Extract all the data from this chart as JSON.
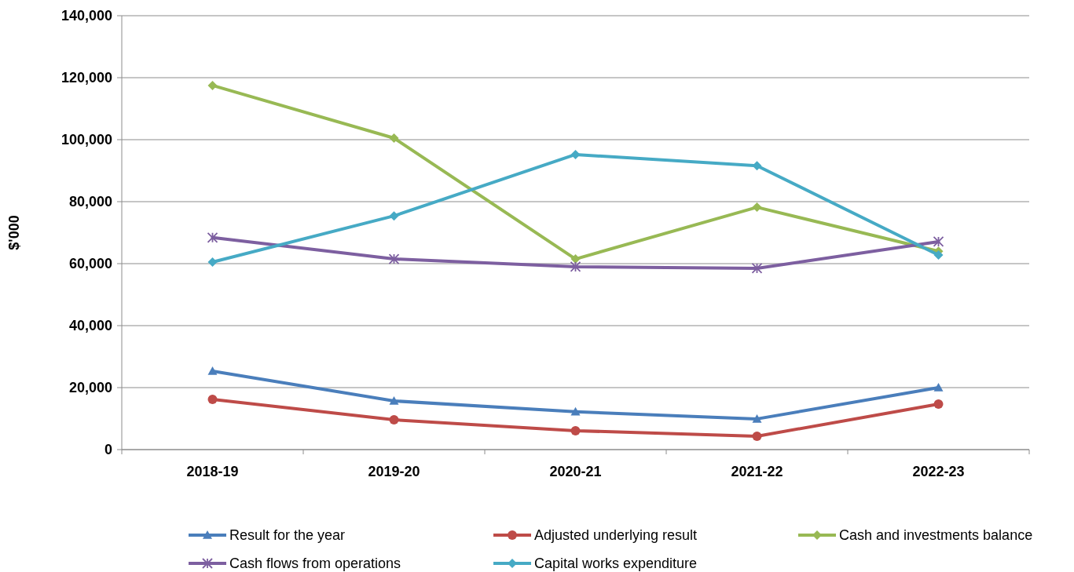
{
  "chart_data": {
    "type": "line",
    "ylabel": "$'000",
    "categories": [
      "2018-19",
      "2019-20",
      "2020-21",
      "2021-22",
      "2022-23"
    ],
    "series": [
      {
        "name": "Result for the year",
        "color": "#4a7ebb",
        "marker": "triangle",
        "values": [
          25300,
          15700,
          12200,
          9900,
          20000
        ]
      },
      {
        "name": "Adjusted underlying result",
        "color": "#be4b48",
        "marker": "circle",
        "values": [
          16200,
          9600,
          6100,
          4300,
          14700
        ]
      },
      {
        "name": "Cash and investments balance",
        "color": "#98b954",
        "marker": "diamond",
        "values": [
          117500,
          100500,
          61500,
          78200,
          64000
        ]
      },
      {
        "name": "Cash flows from operations",
        "color": "#7d5fa0",
        "marker": "cross",
        "values": [
          68400,
          61500,
          59000,
          58500,
          67100
        ]
      },
      {
        "name": "Capital works expenditure",
        "color": "#46aac5",
        "marker": "diamond",
        "values": [
          60500,
          75400,
          95200,
          91600,
          62800
        ]
      }
    ],
    "ylim": [
      0,
      140000
    ],
    "yticks": [
      0,
      {
        "value": 20000,
        "label": "20,000"
      },
      {
        "value": 40000,
        "label": "40,000"
      },
      {
        "value": 60000,
        "label": "60,000"
      },
      {
        "value": 80000,
        "label": "80,000"
      },
      {
        "value": 100000,
        "label": "100,000"
      },
      {
        "value": 120000,
        "label": "120,000"
      },
      {
        "value": 140000,
        "label": "140,000"
      }
    ],
    "grid": "y",
    "legend": "bottom",
    "line_style": "solid"
  }
}
